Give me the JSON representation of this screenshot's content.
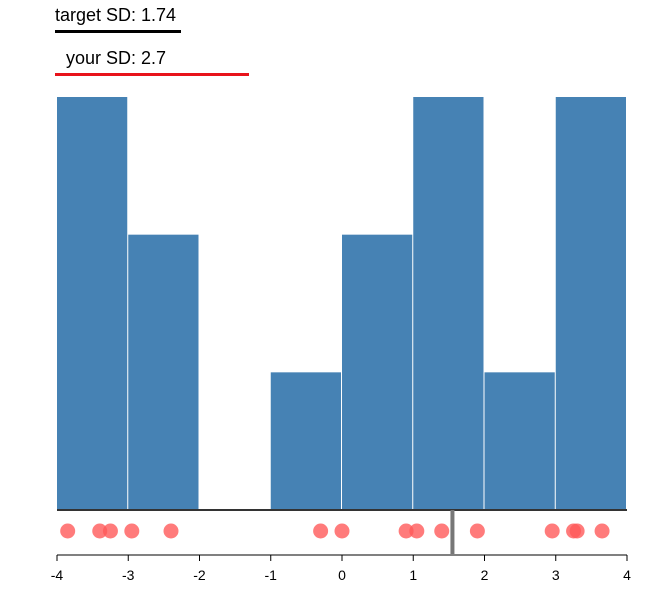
{
  "legend": {
    "target_sd_text": "target SD: 1.74",
    "your_sd_text": "your SD: 2.7"
  },
  "colors": {
    "bar": "#4682b4",
    "dot": "#ff5a5a",
    "target_line": "#000000",
    "your_line": "#e8131b",
    "marker": "#777777"
  },
  "chart_data": {
    "type": "bar",
    "title": "",
    "xlabel": "",
    "ylabel": "",
    "xlim": [
      -4,
      4
    ],
    "ylim": [
      0,
      3
    ],
    "x_ticks": [
      -4,
      -3,
      -2,
      -1,
      0,
      1,
      2,
      3,
      4
    ],
    "bins": [
      {
        "x0": -4,
        "x1": -3,
        "count": 3
      },
      {
        "x0": -3,
        "x1": -2,
        "count": 2
      },
      {
        "x0": -2,
        "x1": -1,
        "count": 0
      },
      {
        "x0": -1,
        "x1": 0,
        "count": 1
      },
      {
        "x0": 0,
        "x1": 1,
        "count": 2
      },
      {
        "x0": 1,
        "x1": 2,
        "count": 3
      },
      {
        "x0": 2,
        "x1": 3,
        "count": 1
      },
      {
        "x0": 3,
        "x1": 4,
        "count": 3
      }
    ],
    "points": [
      -3.85,
      -3.4,
      -3.25,
      -2.95,
      -2.4,
      -0.3,
      0.0,
      0.9,
      1.05,
      1.4,
      1.9,
      2.95,
      3.25,
      3.3,
      3.65
    ],
    "marker_x": 1.55
  }
}
